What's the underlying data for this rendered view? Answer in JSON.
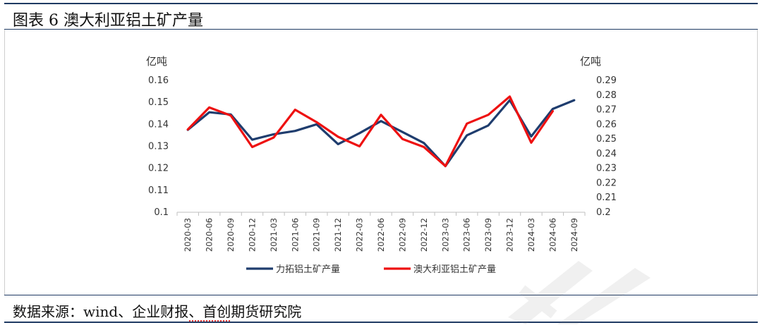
{
  "header": {
    "title": "图表 6 澳大利亚铝土矿产量"
  },
  "footer": {
    "source": "数据来源：wind、企业财报、首创期货研究院"
  },
  "chart_data": {
    "type": "line",
    "categories": [
      "2020-03",
      "2020-06",
      "2020-09",
      "2020-12",
      "2021-03",
      "2021-06",
      "2021-09",
      "2021-12",
      "2022-03",
      "2022-06",
      "2022-09",
      "2022-12",
      "2023-03",
      "2023-06",
      "2023-09",
      "2023-12",
      "2024-03",
      "2024-06",
      "2024-09"
    ],
    "left_axis": {
      "unit": "亿吨",
      "ylim": [
        0.1,
        0.16
      ],
      "ticks": [
        "0.1",
        "0.11",
        "0.12",
        "0.13",
        "0.14",
        "0.15",
        "0.16"
      ]
    },
    "right_axis": {
      "unit": "亿吨",
      "ylim": [
        0.2,
        0.29
      ],
      "ticks": [
        "0.2",
        "0.21",
        "0.22",
        "0.23",
        "0.24",
        "0.25",
        "0.26",
        "0.27",
        "0.28",
        "0.29"
      ]
    },
    "series": [
      {
        "name": "力拓铝土矿产量",
        "axis": "left",
        "color": "#1f3d6e",
        "values": [
          0.1375,
          0.1455,
          0.1445,
          0.133,
          0.1355,
          0.137,
          0.14,
          0.131,
          0.136,
          0.1415,
          0.1365,
          0.1315,
          0.121,
          0.135,
          0.1395,
          0.151,
          0.1345,
          0.147,
          0.151
        ]
      },
      {
        "name": "澳大利亚铝土矿产量",
        "axis": "right",
        "color": "#ee1111",
        "values": [
          0.2565,
          0.2715,
          0.266,
          0.2445,
          0.251,
          0.27,
          0.2615,
          0.2515,
          0.245,
          0.2665,
          0.25,
          0.2445,
          0.2315,
          0.2605,
          0.2665,
          0.279,
          0.2475,
          0.269,
          null
        ]
      }
    ],
    "legend": "bottom",
    "grid": false
  },
  "watermark": {
    "icon": "brand-watermark-icon"
  }
}
